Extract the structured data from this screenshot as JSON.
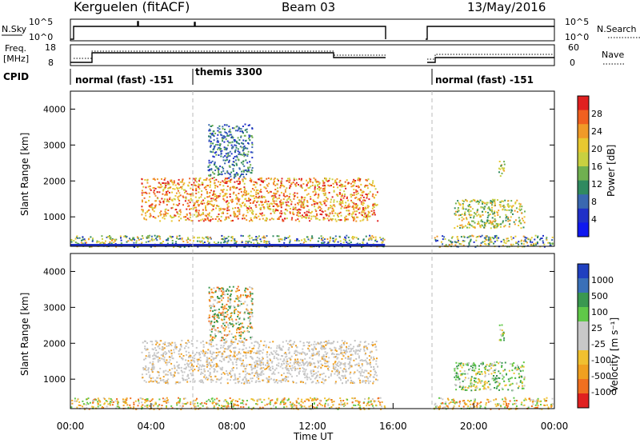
{
  "header": {
    "station": "Kerguelen (fitACF)",
    "beam": "Beam 03",
    "date": "13/May/2016"
  },
  "strip_labels": {
    "nsky": "N.Sky",
    "nsearch": "N.Search",
    "freq_line1": "Freq.",
    "freq_line2": "[MHz]",
    "nave": "Nave",
    "cpid": "CPID",
    "nsky_ticks": [
      "10^5",
      "10^0"
    ],
    "nsearch_ticks": [
      "10^5",
      "10^0"
    ],
    "freq_ticks": [
      "18",
      "8"
    ],
    "nave_ticks": [
      "60",
      "0"
    ]
  },
  "cpid_segments": [
    {
      "label": "normal (fast) -151",
      "start_hour": 0
    },
    {
      "label": "themis 3300",
      "start_hour": 6
    },
    {
      "label": "normal (fast) -151",
      "start_hour": 18
    }
  ],
  "chart_data": [
    {
      "type": "heatmap",
      "panel": "power",
      "ylabel": "Slant Range [km]",
      "xlabel": "",
      "ylim": [
        180,
        4500
      ],
      "y_ticks": [
        1000,
        2000,
        3000,
        4000
      ],
      "x_range_hours": [
        0,
        24
      ],
      "colorbar_label": "Power [dB]",
      "colorbar_ticks": [
        "28",
        "24",
        "20",
        "16",
        "12",
        "8",
        "4"
      ],
      "colorbar_colors": [
        "#e02020",
        "#f06020",
        "#f09a28",
        "#e8c830",
        "#c8d040",
        "#70b050",
        "#308a60",
        "#3a68b0",
        "#2030c8",
        "#1018f0"
      ],
      "data_gaps_hours": [
        [
          15.6,
          17.9
        ]
      ],
      "echo_regions": [
        {
          "t0": 3.5,
          "t1": 15.2,
          "r0": 900,
          "r1": 2100,
          "level": "high"
        },
        {
          "t0": 6.8,
          "t1": 9.0,
          "r0": 2100,
          "r1": 3600,
          "level": "low"
        },
        {
          "t0": 0.0,
          "t1": 15.6,
          "r0": 180,
          "r1": 500,
          "level": "mixed"
        },
        {
          "t0": 18.0,
          "t1": 23.9,
          "r0": 180,
          "r1": 500,
          "level": "mixed"
        },
        {
          "t0": 19.0,
          "t1": 22.5,
          "r0": 700,
          "r1": 1500,
          "level": "mid"
        },
        {
          "t0": 21.2,
          "t1": 21.5,
          "r0": 2100,
          "r1": 2600,
          "level": "mid"
        }
      ]
    },
    {
      "type": "heatmap",
      "panel": "velocity",
      "ylabel": "Slant Range [km]",
      "xlabel": "Time UT",
      "ylim": [
        180,
        4500
      ],
      "y_ticks": [
        1000,
        2000,
        3000,
        4000
      ],
      "x_ticks": [
        "00:00",
        "04:00",
        "08:00",
        "12:00",
        "16:00",
        "20:00",
        "00:00"
      ],
      "x_range_hours": [
        0,
        24
      ],
      "colorbar_label": "Velocity [m s⁻¹]",
      "colorbar_ticks": [
        "1000",
        "500",
        "100",
        "25",
        "-25",
        "-100",
        "-500",
        "-1000"
      ],
      "colorbar_colors": [
        "#2040c0",
        "#3a70b8",
        "#3a9850",
        "#60c848",
        "#c8c8c8",
        "#c8c8c8",
        "#f0c030",
        "#f0a020",
        "#f07020",
        "#e02020"
      ],
      "data_gaps_hours": [
        [
          15.6,
          17.9
        ]
      ]
    }
  ]
}
